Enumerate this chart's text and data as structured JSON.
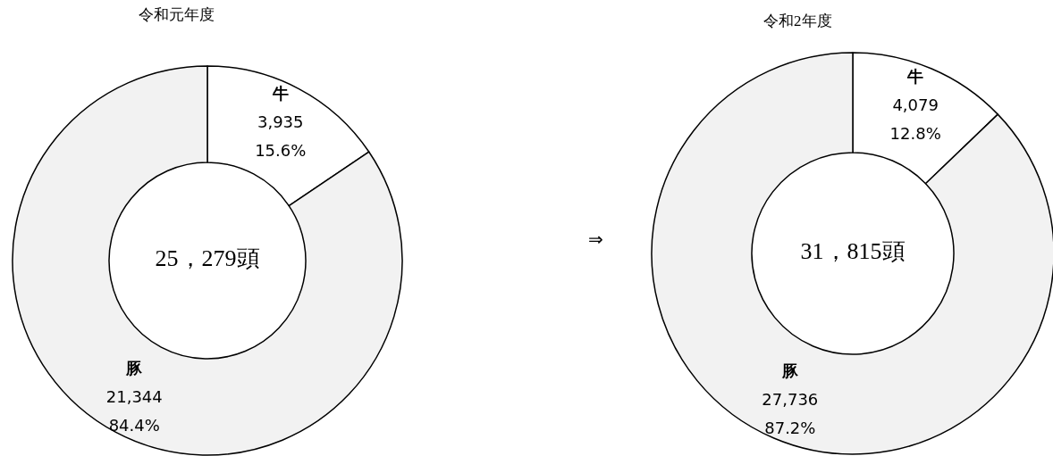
{
  "chart_data": [
    {
      "type": "donut",
      "title": "令和元年度",
      "categories": [
        "牛",
        "豚"
      ],
      "values": [
        3935,
        21344
      ],
      "colors": [
        "#ffffff",
        "#f2f2f2"
      ],
      "value_labels": [
        "3,935",
        "21,344"
      ],
      "annotations": [
        {
          "text": "15.6%",
          "x": "牛"
        },
        {
          "text": "84.4%",
          "x": "豚"
        },
        "25，279頭"
      ]
    },
    {
      "type": "other",
      "annotations": [
        "⇒"
      ]
    },
    {
      "type": "donut",
      "title": "令和2年度",
      "categories": [
        "牛",
        "豚"
      ],
      "values": [
        4079,
        27736
      ],
      "colors": [
        "#ffffff",
        "#f2f2f2"
      ],
      "value_labels": [
        "4,079",
        "27,736"
      ],
      "annotations": [
        {
          "text": "12.8%",
          "x": "牛"
        },
        {
          "text": "87.2%",
          "x": "豚"
        },
        "31，815頭"
      ]
    }
  ]
}
